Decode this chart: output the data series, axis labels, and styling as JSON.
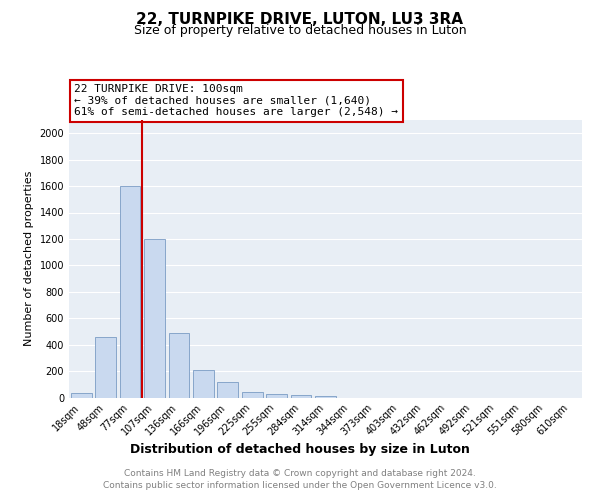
{
  "title": "22, TURNPIKE DRIVE, LUTON, LU3 3RA",
  "subtitle": "Size of property relative to detached houses in Luton",
  "xlabel": "Distribution of detached houses by size in Luton",
  "ylabel": "Number of detached properties",
  "categories": [
    "18sqm",
    "48sqm",
    "77sqm",
    "107sqm",
    "136sqm",
    "166sqm",
    "196sqm",
    "225sqm",
    "255sqm",
    "284sqm",
    "314sqm",
    "344sqm",
    "373sqm",
    "403sqm",
    "432sqm",
    "462sqm",
    "492sqm",
    "521sqm",
    "551sqm",
    "580sqm",
    "610sqm"
  ],
  "values": [
    35,
    460,
    1600,
    1200,
    490,
    210,
    120,
    45,
    30,
    20,
    15,
    0,
    0,
    0,
    0,
    0,
    0,
    0,
    0,
    0,
    0
  ],
  "bar_color": "#c9d9ef",
  "bar_edge_color": "#7a9cc4",
  "vline_color": "#cc0000",
  "annotation_line1": "22 TURNPIKE DRIVE: 100sqm",
  "annotation_line2": "← 39% of detached houses are smaller (1,640)",
  "annotation_line3": "61% of semi-detached houses are larger (2,548) →",
  "annotation_box_color": "white",
  "annotation_box_edge_color": "#cc0000",
  "ylim": [
    0,
    2100
  ],
  "yticks": [
    0,
    200,
    400,
    600,
    800,
    1000,
    1200,
    1400,
    1600,
    1800,
    2000
  ],
  "bg_color": "#e8eef5",
  "grid_color": "#ffffff",
  "footer_line1": "Contains HM Land Registry data © Crown copyright and database right 2024.",
  "footer_line2": "Contains public sector information licensed under the Open Government Licence v3.0.",
  "title_fontsize": 11,
  "subtitle_fontsize": 9,
  "xlabel_fontsize": 9,
  "ylabel_fontsize": 8,
  "tick_fontsize": 7,
  "footer_fontsize": 6.5,
  "annotation_fontsize": 8
}
